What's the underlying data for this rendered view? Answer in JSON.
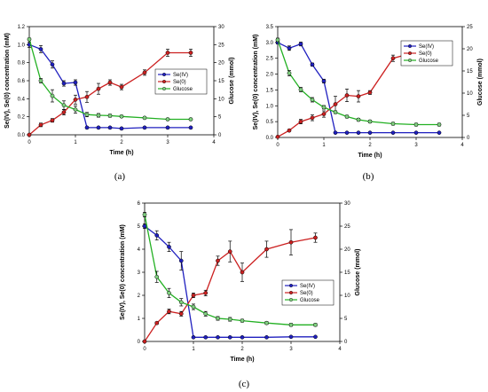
{
  "chart_data": [
    {
      "type": "line",
      "caption": "(a)",
      "xlabel": "Time (h)",
      "ylabel": "Se(IV), Se(0) concentration (mM)",
      "y2label": "Glucose (mmol)",
      "xlim": [
        0,
        4
      ],
      "ylim": [
        0,
        1.2
      ],
      "y2lim": [
        0,
        30
      ],
      "xticks": [
        "0",
        "1",
        "2",
        "3",
        "4"
      ],
      "yticks": [
        "0.0",
        "0.2",
        "0.4",
        "0.6",
        "0.8",
        "1.0",
        "1.2"
      ],
      "y2ticks": [
        "0",
        "5",
        "10",
        "15",
        "20",
        "25",
        "30"
      ],
      "legend": "right",
      "series": [
        {
          "name": "Se(IV)",
          "axis": "left",
          "color": "#1f1fbf",
          "marker": "#1f1fbf",
          "x": [
            0,
            0.25,
            0.5,
            0.75,
            1.0,
            1.25,
            1.5,
            1.75,
            2.0,
            2.5,
            3.0,
            3.5
          ],
          "y": [
            1.0,
            0.95,
            0.78,
            0.57,
            0.58,
            0.08,
            0.08,
            0.08,
            0.07,
            0.08,
            0.08,
            0.08
          ],
          "err": [
            0.03,
            0.04,
            0.04,
            0.03,
            0.03,
            0.01,
            0.01,
            0.01,
            0.01,
            0.01,
            0.01,
            0.01
          ]
        },
        {
          "name": "Se(0)",
          "axis": "left",
          "color": "#cc2020",
          "marker": "#cc2020",
          "x": [
            0,
            0.25,
            0.5,
            0.75,
            1.0,
            1.25,
            1.5,
            1.75,
            2.0,
            2.5,
            3.0,
            3.5
          ],
          "y": [
            0.0,
            0.11,
            0.16,
            0.25,
            0.39,
            0.42,
            0.51,
            0.58,
            0.53,
            0.69,
            0.91,
            0.91
          ],
          "err": [
            0.01,
            0.02,
            0.02,
            0.03,
            0.05,
            0.06,
            0.06,
            0.03,
            0.03,
            0.03,
            0.04,
            0.04
          ]
        },
        {
          "name": "Glucose",
          "axis": "right",
          "color": "#22b022",
          "marker": "#7fd07f",
          "x": [
            0,
            0.25,
            0.5,
            0.75,
            1.0,
            1.25,
            1.5,
            1.75,
            2.0,
            2.5,
            3.0,
            3.5
          ],
          "y": [
            26.5,
            15.0,
            10.8,
            8.2,
            7.0,
            5.6,
            5.4,
            5.3,
            5.1,
            4.7,
            4.3,
            4.3
          ],
          "err": [
            0.3,
            0.6,
            1.7,
            1.2,
            1.0,
            0.6,
            0.5,
            0.4,
            0.3,
            0.3,
            0.3,
            0.3
          ]
        }
      ]
    },
    {
      "type": "line",
      "caption": "(b)",
      "xlabel": "Time (h)",
      "ylabel": "Se(IV), Se(0) concentration (mM)",
      "y2label": "Glucose (mmol)",
      "xlim": [
        0,
        4
      ],
      "ylim": [
        0,
        3.5
      ],
      "y2lim": [
        0,
        25
      ],
      "xticks": [
        "0",
        "1",
        "2",
        "3",
        "4"
      ],
      "yticks": [
        "0.0",
        "0.5",
        "1.0",
        "1.5",
        "2.0",
        "2.5",
        "3.0",
        "3.5"
      ],
      "y2ticks": [
        "0",
        "5",
        "10",
        "15",
        "20",
        "25"
      ],
      "legend": "right",
      "series": [
        {
          "name": "Se(IV)",
          "axis": "left",
          "color": "#1f1fbf",
          "marker": "#1f1fbf",
          "x": [
            0,
            0.25,
            0.5,
            0.75,
            1.0,
            1.25,
            1.5,
            1.75,
            2.0,
            2.5,
            3.0,
            3.5
          ],
          "y": [
            3.0,
            2.82,
            2.95,
            2.3,
            1.78,
            0.15,
            0.15,
            0.15,
            0.15,
            0.15,
            0.15,
            0.15
          ],
          "err": [
            0.05,
            0.07,
            0.06,
            0.05,
            0.06,
            0.01,
            0.01,
            0.01,
            0.01,
            0.01,
            0.01,
            0.01
          ]
        },
        {
          "name": "Se(0)",
          "axis": "left",
          "color": "#cc2020",
          "marker": "#cc2020",
          "x": [
            0,
            0.25,
            0.5,
            0.75,
            1.0,
            1.25,
            1.5,
            1.75,
            2.0,
            2.5,
            3.0,
            3.5
          ],
          "y": [
            0.02,
            0.22,
            0.5,
            0.62,
            0.74,
            1.05,
            1.33,
            1.3,
            1.42,
            2.5,
            2.7,
            2.7
          ],
          "err": [
            0.02,
            0.03,
            0.07,
            0.09,
            0.1,
            0.25,
            0.2,
            0.18,
            0.06,
            0.1,
            0.12,
            0.1
          ]
        },
        {
          "name": "Glucose",
          "axis": "right",
          "color": "#22b022",
          "marker": "#7fd07f",
          "x": [
            0,
            0.25,
            0.5,
            0.75,
            1.0,
            1.25,
            1.5,
            1.75,
            2.0,
            2.5,
            3.0,
            3.5
          ],
          "y": [
            22.0,
            14.5,
            10.8,
            8.5,
            6.8,
            5.7,
            4.7,
            4.0,
            3.6,
            3.1,
            2.9,
            2.9
          ],
          "err": [
            0.4,
            0.6,
            0.5,
            0.5,
            0.4,
            0.3,
            0.3,
            0.3,
            0.3,
            0.3,
            0.3,
            0.3
          ]
        }
      ]
    },
    {
      "type": "line",
      "caption": "(c)",
      "xlabel": "Time (h)",
      "ylabel": "Se(IV), Se(0) concentration (mM)",
      "y2label": "Glucose (mmol)",
      "xlim": [
        0,
        4
      ],
      "ylim": [
        0,
        6
      ],
      "y2lim": [
        0,
        30
      ],
      "xticks": [
        "0",
        "1",
        "2",
        "3",
        "4"
      ],
      "yticks": [
        "0",
        "1",
        "2",
        "3",
        "4",
        "5",
        "6"
      ],
      "y2ticks": [
        "0",
        "5",
        "10",
        "15",
        "20",
        "25",
        "30"
      ],
      "legend": "center-right",
      "series": [
        {
          "name": "Se(IV)",
          "axis": "left",
          "color": "#1f1fbf",
          "marker": "#1f1fbf",
          "x": [
            0,
            0.25,
            0.5,
            0.75,
            1.0,
            1.25,
            1.5,
            1.75,
            2.0,
            2.5,
            3.0,
            3.5
          ],
          "y": [
            5.0,
            4.6,
            4.1,
            3.5,
            0.18,
            0.18,
            0.18,
            0.18,
            0.18,
            0.18,
            0.2,
            0.2
          ],
          "err": [
            0.1,
            0.2,
            0.2,
            0.4,
            0.02,
            0.02,
            0.02,
            0.02,
            0.02,
            0.02,
            0.02,
            0.02
          ]
        },
        {
          "name": "Se(0)",
          "axis": "left",
          "color": "#cc2020",
          "marker": "#cc2020",
          "x": [
            0,
            0.25,
            0.5,
            0.75,
            1.0,
            1.25,
            1.5,
            1.75,
            2.0,
            2.5,
            3.0,
            3.5
          ],
          "y": [
            0.0,
            0.8,
            1.3,
            1.2,
            2.0,
            2.1,
            3.5,
            3.9,
            3.0,
            4.0,
            4.3,
            4.5
          ],
          "err": [
            0.03,
            0.05,
            0.1,
            0.1,
            0.1,
            0.12,
            0.2,
            0.45,
            0.4,
            0.35,
            0.55,
            0.2
          ]
        },
        {
          "name": "Glucose",
          "axis": "right",
          "color": "#22b022",
          "marker": "#7fd07f",
          "x": [
            0,
            0.25,
            0.5,
            0.75,
            1.0,
            1.25,
            1.5,
            1.75,
            2.0,
            2.5,
            3.0,
            3.5
          ],
          "y": [
            27.5,
            14.0,
            10.5,
            8.5,
            7.5,
            6.0,
            5.0,
            4.8,
            4.5,
            4.0,
            3.6,
            3.6
          ],
          "err": [
            0.5,
            1.2,
            1.0,
            0.8,
            0.6,
            0.5,
            0.4,
            0.4,
            0.3,
            0.3,
            0.3,
            0.3
          ]
        }
      ]
    }
  ]
}
